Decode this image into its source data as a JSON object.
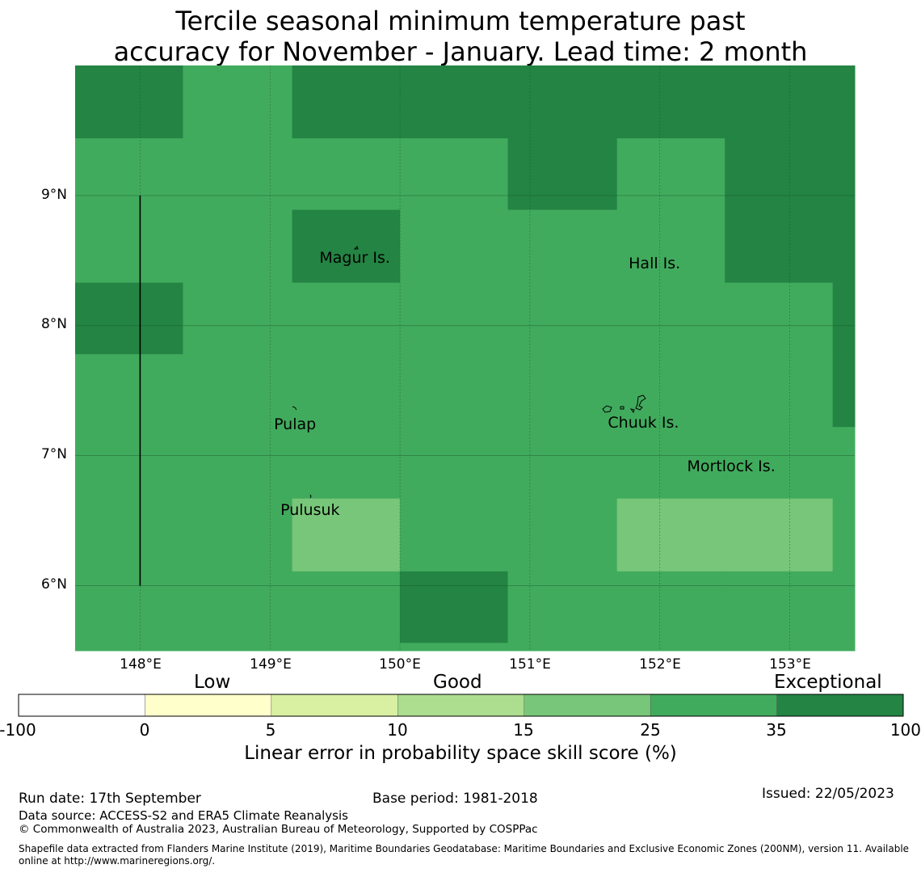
{
  "title": {
    "line1": "Tercile seasonal minimum temperature past",
    "line2": "accuracy for November - January. Lead time: 2 month"
  },
  "map": {
    "lat_range": [
      5.5,
      10.0
    ],
    "lon_range": [
      147.5,
      153.5
    ],
    "lat_ticks": [
      {
        "value": 9,
        "label": "9°N"
      },
      {
        "value": 8,
        "label": "8°N"
      },
      {
        "value": 7,
        "label": "7°N"
      },
      {
        "value": 6,
        "label": "6°N"
      }
    ],
    "lon_ticks": [
      {
        "value": 148,
        "label": "148°E"
      },
      {
        "value": 149,
        "label": "149°E"
      },
      {
        "value": 150,
        "label": "150°E"
      },
      {
        "value": 151,
        "label": "151°E"
      },
      {
        "value": 152,
        "label": "152°E"
      },
      {
        "value": 153,
        "label": "153°E"
      }
    ],
    "colors": {
      "category_25_35": "#41ab5d",
      "category_35_100": "#238443",
      "category_15_25": "#78c679",
      "gridline": "#1a5a2a"
    },
    "grid_lon_edges": [
      147.5,
      148.33,
      149.17,
      150.0,
      150.83,
      151.67,
      152.5,
      153.33,
      153.5
    ],
    "grid_lat_edges": [
      10.0,
      9.44,
      8.89,
      8.33,
      7.78,
      7.22,
      6.67,
      6.11,
      5.56,
      5.5
    ],
    "grid_classes": [
      [
        2,
        1,
        2,
        2,
        2,
        2,
        2,
        2
      ],
      [
        1,
        1,
        1,
        1,
        2,
        1,
        2,
        2
      ],
      [
        1,
        1,
        2,
        1,
        1,
        1,
        2,
        2
      ],
      [
        2,
        1,
        1,
        1,
        1,
        1,
        1,
        2
      ],
      [
        1,
        1,
        1,
        1,
        1,
        1,
        1,
        2
      ],
      [
        1,
        1,
        1,
        1,
        1,
        1,
        1,
        1
      ],
      [
        1,
        1,
        0,
        1,
        1,
        0,
        0,
        1
      ],
      [
        1,
        1,
        1,
        2,
        1,
        1,
        1,
        1
      ],
      [
        1,
        1,
        1,
        1,
        1,
        1,
        1,
        1
      ]
    ],
    "boundary_line": {
      "lon": 148.0,
      "lat_from": 9.0,
      "lat_to": 6.0
    },
    "places": [
      {
        "name": "Magur Is.",
        "lon": 149.38,
        "lat": 8.52
      },
      {
        "name": "Hall Is.",
        "lon": 151.76,
        "lat": 8.48
      },
      {
        "name": "Pulap",
        "lon": 149.03,
        "lat": 7.24
      },
      {
        "name": "Chuuk Is.",
        "lon": 151.6,
        "lat": 7.25
      },
      {
        "name": "Mortlock Is.",
        "lon": 152.21,
        "lat": 6.92
      },
      {
        "name": "Pulusuk",
        "lon": 149.08,
        "lat": 6.58
      }
    ]
  },
  "colorbar": {
    "category_labels": [
      "Low",
      "Good",
      "Exceptional"
    ],
    "tick_labels": [
      "-100",
      "0",
      "5",
      "10",
      "15",
      "25",
      "35",
      "100"
    ],
    "bins": [
      {
        "from": -100,
        "to": 0,
        "color": "#ffffff"
      },
      {
        "from": 0,
        "to": 5,
        "color": "#ffffcc"
      },
      {
        "from": 5,
        "to": 10,
        "color": "#d9f0a3"
      },
      {
        "from": 10,
        "to": 15,
        "color": "#addd8e"
      },
      {
        "from": 15,
        "to": 25,
        "color": "#78c679"
      },
      {
        "from": 25,
        "to": 35,
        "color": "#41ab5d"
      },
      {
        "from": 35,
        "to": 100,
        "color": "#238443"
      }
    ],
    "title": "Linear error in probability space skill score (%)"
  },
  "footer": {
    "run_date": "Run date: 17th September",
    "base_period": "Base period: 1981-2018",
    "issued": "Issued: 22/05/2023",
    "data_source": "Data source: ACCESS-S2 and ERA5 Climate Reanalysis",
    "copyright": "© Commonwealth of Australia 2023, Australian Bureau of Meteorology, Supported by COSPPac",
    "shapefile": "Shapefile data extracted from Flanders Marine Institute (2019), Maritime Boundaries Geodatabase: Maritime Boundaries and Exclusive Economic Zones (200NM), version 11. Available online at http://www.marineregions.org/."
  }
}
